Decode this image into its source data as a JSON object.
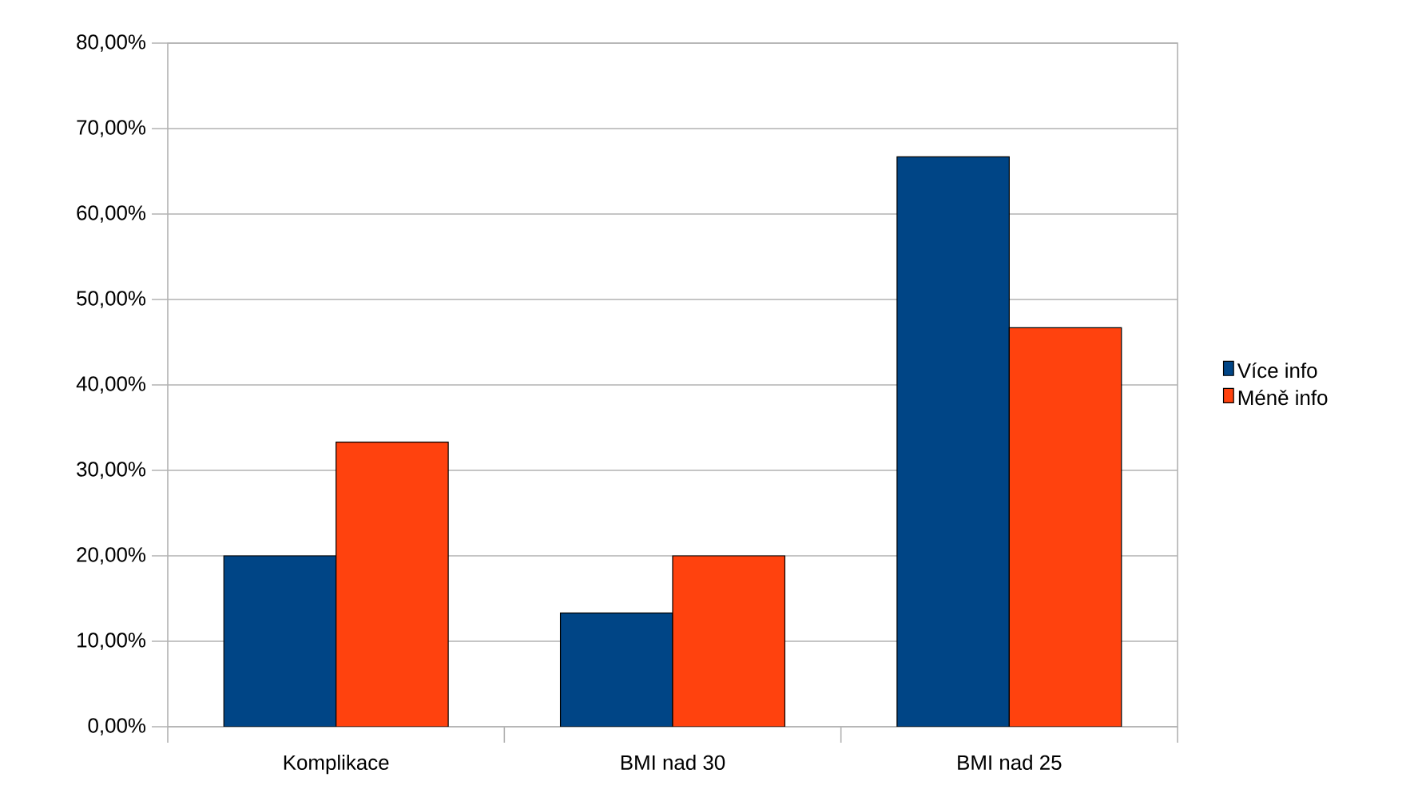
{
  "chart_data": {
    "type": "bar",
    "categories": [
      "Komplikace",
      "BMI nad 30",
      "BMI nad 25"
    ],
    "series": [
      {
        "name": "Více info",
        "color": "#004586",
        "values": [
          20.0,
          13.3,
          66.7
        ]
      },
      {
        "name": "Méně info",
        "color": "#ff420e",
        "values": [
          33.3,
          20.0,
          46.7
        ]
      }
    ],
    "ylim": [
      0,
      80
    ],
    "yticks": [
      {
        "value": 0,
        "label": "0,00%"
      },
      {
        "value": 10,
        "label": "10,00%"
      },
      {
        "value": 20,
        "label": "20,00%"
      },
      {
        "value": 30,
        "label": "30,00%"
      },
      {
        "value": 40,
        "label": "40,00%"
      },
      {
        "value": 50,
        "label": "50,00%"
      },
      {
        "value": 60,
        "label": "60,00%"
      },
      {
        "value": 70,
        "label": "70,00%"
      },
      {
        "value": 80,
        "label": "80,00%"
      }
    ],
    "grid": "y",
    "legend": "right"
  }
}
